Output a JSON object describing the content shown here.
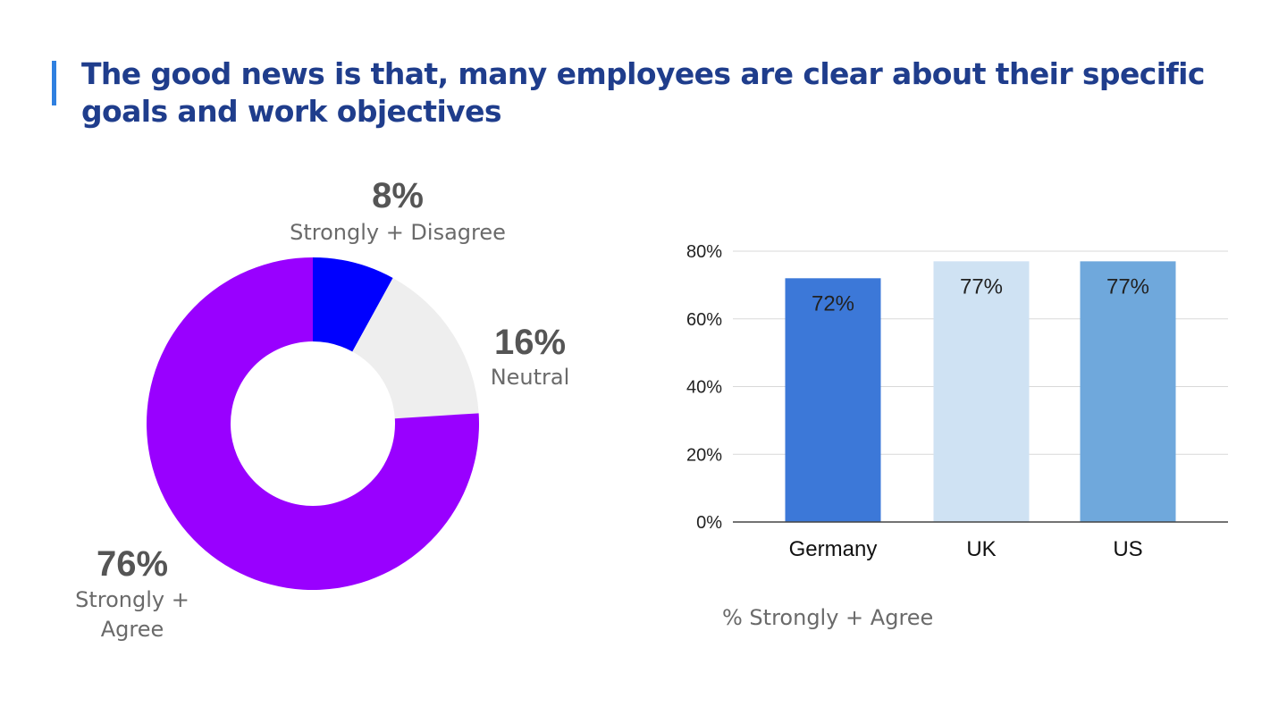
{
  "title": "The good news is that, many employees are clear about their specific goals and work objectives",
  "colors": {
    "accent": "#2f80e0",
    "title": "#1f3d8c",
    "gridline": "#d9d9d9",
    "axis": "#444444"
  },
  "chart_data": [
    {
      "type": "pie",
      "donut": true,
      "slices": [
        {
          "pct_label": "8%",
          "label": "Strongly + Disagree",
          "value": 8,
          "color": "#0000ff"
        },
        {
          "pct_label": "16%",
          "label": "Neutral",
          "value": 16,
          "color": "#eeeeee"
        },
        {
          "pct_label": "76%",
          "label": "Strongly + Agree",
          "label_lines": [
            "Strongly +",
            "Agree"
          ],
          "value": 76,
          "color": "#9900ff"
        }
      ]
    },
    {
      "type": "bar",
      "categories": [
        "Germany",
        "UK",
        "US"
      ],
      "values": [
        72,
        77,
        77
      ],
      "value_labels": [
        "72%",
        "77%",
        "77%"
      ],
      "colors": [
        "#3c78d8",
        "#cfe2f3",
        "#6fa8dc"
      ],
      "ylim": [
        0,
        80
      ],
      "yticks": [
        "0%",
        "20%",
        "40%",
        "60%",
        "80%"
      ],
      "grid": true,
      "caption": "% Strongly + Agree"
    }
  ]
}
